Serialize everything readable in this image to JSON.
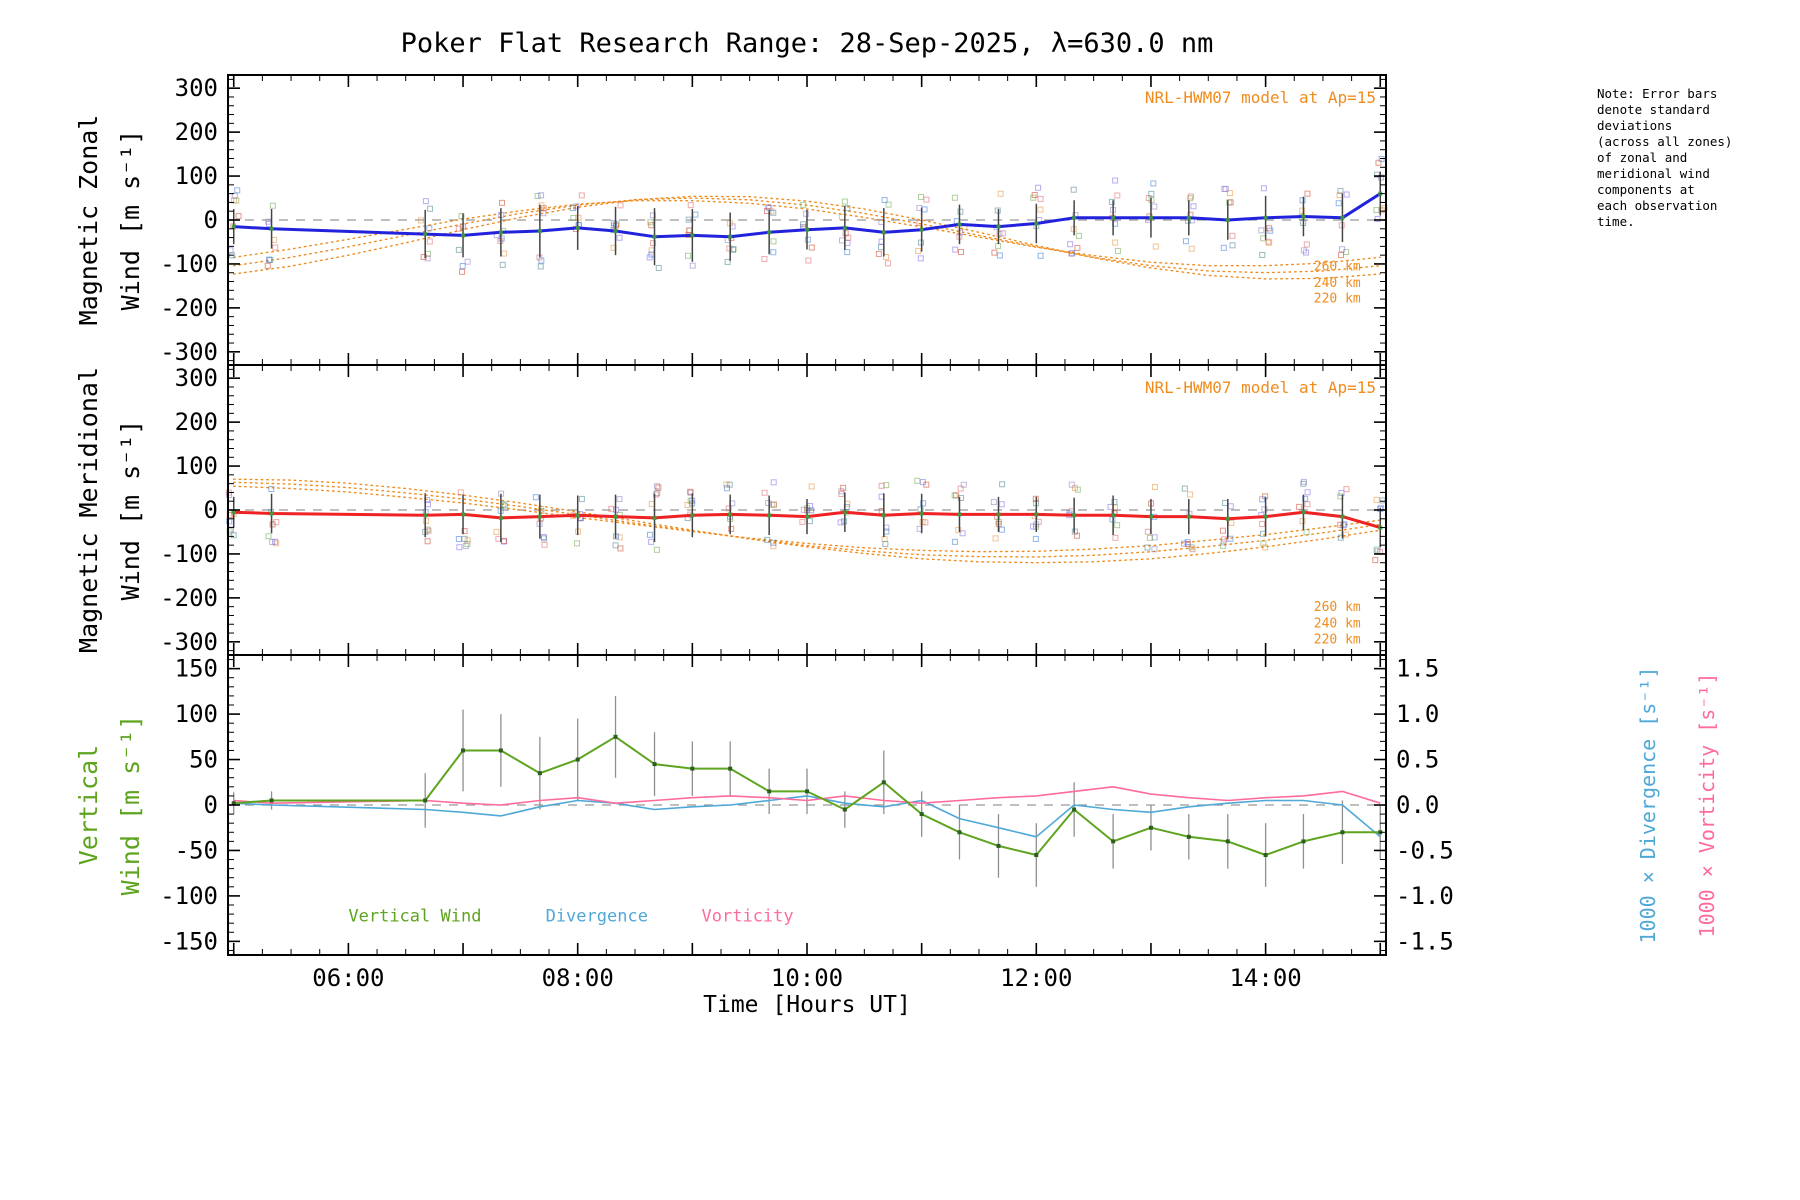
{
  "title": "Poker Flat Research Range: 28-Sep-2025, λ=630.0 nm",
  "xlabel": "Time [Hours UT]",
  "note_lines": [
    "Note: Error bars",
    "denote standard",
    "deviations",
    "(across all zones)",
    "of zonal and",
    "meridional wind",
    "components at",
    "each observation",
    "time."
  ],
  "x_axis": {
    "range": [
      4.95,
      15.05
    ],
    "major": 1,
    "minor": 0.25,
    "tick_values": [
      6,
      8,
      10,
      12,
      14
    ],
    "tick_labels": [
      "06:00",
      "08:00",
      "10:00",
      "12:00",
      "14:00"
    ]
  },
  "colors": {
    "zonal": "#2222dd",
    "meridional": "#ee2222",
    "vertical": "#5fa41f",
    "divergence": "#4fa8d8",
    "vorticity": "#ff6b9c",
    "model": "#f08c1e",
    "error": "#454545",
    "error_gray": "#8f8f8f",
    "zero": "#999999",
    "marker_green": "#3f9b3f",
    "marker_dark": "#2c5f1e",
    "scatter": [
      "#7b68ee",
      "#e06666",
      "#6aa84f",
      "#e69138",
      "#8e7cc3",
      "#45818e",
      "#cc4125",
      "#3c78d8"
    ]
  },
  "chart_data": [
    {
      "type": "line",
      "name": "magnetic-zonal-wind",
      "ylabel_lines": [
        "Magnetic Zonal",
        "Wind [m s⁻¹]"
      ],
      "ylim": [
        -330,
        330
      ],
      "yticks": {
        "major": 100,
        "minor": 20
      },
      "annotation": "NRL-HWM07 model at Ap=15",
      "scatter_spread": 85,
      "x": [
        5.0,
        5.33,
        6.67,
        7.0,
        7.33,
        7.67,
        8.0,
        8.33,
        8.67,
        9.0,
        9.33,
        9.67,
        10.0,
        10.33,
        10.67,
        11.0,
        11.33,
        11.67,
        12.0,
        12.33,
        12.67,
        13.0,
        13.33,
        13.67,
        14.0,
        14.33,
        14.67,
        15.0
      ],
      "y": [
        -15,
        -20,
        -32,
        -35,
        -28,
        -25,
        -18,
        -25,
        -38,
        -35,
        -38,
        -28,
        -22,
        -18,
        -28,
        -22,
        -10,
        -15,
        -8,
        5,
        5,
        5,
        5,
        0,
        5,
        8,
        5,
        60
      ],
      "std": [
        40,
        45,
        55,
        50,
        55,
        60,
        50,
        55,
        65,
        60,
        55,
        50,
        45,
        50,
        55,
        50,
        45,
        40,
        45,
        40,
        40,
        45,
        40,
        45,
        50,
        45,
        55,
        50
      ],
      "model": {
        "x": [
          5,
          5.5,
          6,
          6.5,
          7,
          7.5,
          8,
          8.5,
          9,
          9.5,
          10,
          10.5,
          11,
          11.5,
          12,
          12.5,
          13,
          13.5,
          14,
          14.5,
          15
        ],
        "series": [
          {
            "name": "260 km",
            "values": [
              -85,
              -66,
              -44,
              -21,
              2,
              21,
              36,
              44,
              44,
              38,
              25,
              6,
              -16,
              -39,
              -62,
              -81,
              -96,
              -104,
              -104,
              -98,
              -85
            ]
          },
          {
            "name": "240 km",
            "values": [
              -104,
              -85,
              -61,
              -35,
              -9,
              15,
              34,
              46,
              50,
              46,
              34,
              15,
              -9,
              -35,
              -61,
              -85,
              -104,
              -116,
              -120,
              -116,
              -104
            ]
          },
          {
            "name": "220 km",
            "values": [
              -123,
              -105,
              -80,
              -52,
              -22,
              6,
              29,
              46,
              54,
              53,
              43,
              25,
              0,
              -28,
              -58,
              -86,
              -109,
              -126,
              -134,
              -133,
              -123
            ]
          }
        ]
      },
      "model_labels": [
        {
          "label": "260 km",
          "t": 14.42,
          "v": -115
        },
        {
          "label": "240 km",
          "t": 14.42,
          "v": -152
        },
        {
          "label": "220 km",
          "t": 14.42,
          "v": -188
        }
      ]
    },
    {
      "type": "line",
      "name": "magnetic-meridional-wind",
      "ylabel_lines": [
        "Magnetic Meridional",
        "Wind [m s⁻¹]"
      ],
      "ylim": [
        -330,
        330
      ],
      "yticks": {
        "major": 100,
        "minor": 20
      },
      "annotation": "NRL-HWM07 model at Ap=15",
      "scatter_spread": 75,
      "x": [
        5.0,
        5.33,
        6.67,
        7.0,
        7.33,
        7.67,
        8.0,
        8.33,
        8.67,
        9.0,
        9.33,
        9.67,
        10.0,
        10.33,
        10.67,
        11.0,
        11.33,
        11.67,
        12.0,
        12.33,
        12.67,
        13.0,
        13.33,
        13.67,
        14.0,
        14.33,
        14.67,
        15.0
      ],
      "y": [
        -5,
        -8,
        -12,
        -10,
        -18,
        -15,
        -12,
        -15,
        -18,
        -12,
        -10,
        -12,
        -15,
        -5,
        -12,
        -8,
        -10,
        -10,
        -10,
        -12,
        -12,
        -15,
        -15,
        -20,
        -15,
        -5,
        -15,
        -40
      ],
      "std": [
        35,
        45,
        50,
        45,
        55,
        50,
        45,
        50,
        55,
        50,
        45,
        45,
        40,
        45,
        50,
        45,
        40,
        40,
        40,
        40,
        45,
        40,
        40,
        45,
        45,
        40,
        50,
        45
      ],
      "model": {
        "x": [
          5,
          5.5,
          6,
          6.5,
          7,
          7.5,
          8,
          8.5,
          9,
          9.5,
          10,
          10.5,
          11,
          11.5,
          12,
          12.5,
          13,
          13.5,
          14,
          14.5,
          15
        ],
        "series": [
          {
            "name": "260 km",
            "values": [
              54,
              49,
              41,
              29,
              16,
              0,
              -17,
              -33,
              -49,
              -64,
              -76,
              -86,
              -92,
              -95,
              -94,
              -89,
              -81,
              -69,
              -56,
              -40,
              -23
            ]
          },
          {
            "name": "240 km",
            "values": [
              63,
              59,
              51,
              39,
              25,
              8,
              -11,
              -30,
              -48,
              -65,
              -81,
              -93,
              -102,
              -106,
              -107,
              -103,
              -95,
              -83,
              -69,
              -52,
              -33
            ]
          },
          {
            "name": "220 km",
            "values": [
              70,
              68,
              61,
              49,
              34,
              16,
              -4,
              -25,
              -46,
              -66,
              -84,
              -99,
              -111,
              -118,
              -120,
              -118,
              -111,
              -99,
              -84,
              -66,
              -46
            ]
          }
        ]
      },
      "model_labels": [
        {
          "label": "260 km",
          "t": 14.42,
          "v": -230
        },
        {
          "label": "240 km",
          "t": 14.42,
          "v": -267
        },
        {
          "label": "220 km",
          "t": 14.42,
          "v": -304
        }
      ]
    },
    {
      "type": "line",
      "name": "vertical-wind-divergence-vorticity",
      "ylabel_lines": [
        "Vertical",
        "Wind [m s⁻¹]"
      ],
      "ylim": [
        -165,
        165
      ],
      "yticks": {
        "major": 50,
        "minor": 10
      },
      "right": {
        "ylim": [
          -1.65,
          1.65
        ],
        "major": 0.5,
        "minor": 0.1,
        "decimals": 1,
        "axis_labels": [
          "1000 × Divergence [s⁻¹]",
          "1000 × Vorticity [s⁻¹]"
        ]
      },
      "x": [
        5.0,
        5.33,
        6.67,
        7.0,
        7.33,
        7.67,
        8.0,
        8.33,
        8.67,
        9.0,
        9.33,
        9.67,
        10.0,
        10.33,
        10.67,
        11.0,
        11.33,
        11.67,
        12.0,
        12.33,
        12.67,
        13.0,
        13.33,
        13.67,
        14.0,
        14.33,
        14.67,
        15.0
      ],
      "series": [
        {
          "name": "Vertical Wind",
          "axis": "left",
          "values": [
            2,
            5,
            5,
            60,
            60,
            35,
            50,
            75,
            45,
            40,
            40,
            15,
            15,
            -5,
            25,
            -10,
            -30,
            -45,
            -55,
            -5,
            -40,
            -25,
            -35,
            -40,
            -55,
            -40,
            -30,
            -30
          ],
          "err": [
            12,
            10,
            30,
            45,
            40,
            40,
            45,
            45,
            35,
            30,
            30,
            25,
            25,
            20,
            35,
            25,
            30,
            35,
            35,
            30,
            30,
            25,
            25,
            30,
            35,
            30,
            35,
            30
          ]
        },
        {
          "name": "Divergence",
          "axis": "right",
          "values": [
            0.02,
            0.0,
            -0.05,
            -0.08,
            -0.12,
            -0.02,
            0.05,
            0.02,
            -0.05,
            -0.02,
            0.0,
            0.05,
            0.1,
            0.02,
            -0.02,
            0.05,
            -0.15,
            -0.25,
            -0.35,
            0.0,
            -0.05,
            -0.08,
            -0.02,
            0.02,
            0.05,
            0.05,
            0.0,
            -0.35
          ]
        },
        {
          "name": "Vorticity",
          "axis": "right",
          "values": [
            0.05,
            0.02,
            0.05,
            0.02,
            0.0,
            0.05,
            0.08,
            0.02,
            0.05,
            0.08,
            0.1,
            0.08,
            0.05,
            0.1,
            0.05,
            0.02,
            0.05,
            0.08,
            0.1,
            0.15,
            0.2,
            0.12,
            0.08,
            0.05,
            0.08,
            0.1,
            0.15,
            0.02
          ]
        }
      ],
      "legend": [
        {
          "label": "Vertical Wind",
          "t": 6.0,
          "v": -128
        },
        {
          "label": "Divergence",
          "t": 7.72,
          "v": -128
        },
        {
          "label": "Vorticity",
          "t": 9.08,
          "v": -128
        }
      ]
    }
  ]
}
